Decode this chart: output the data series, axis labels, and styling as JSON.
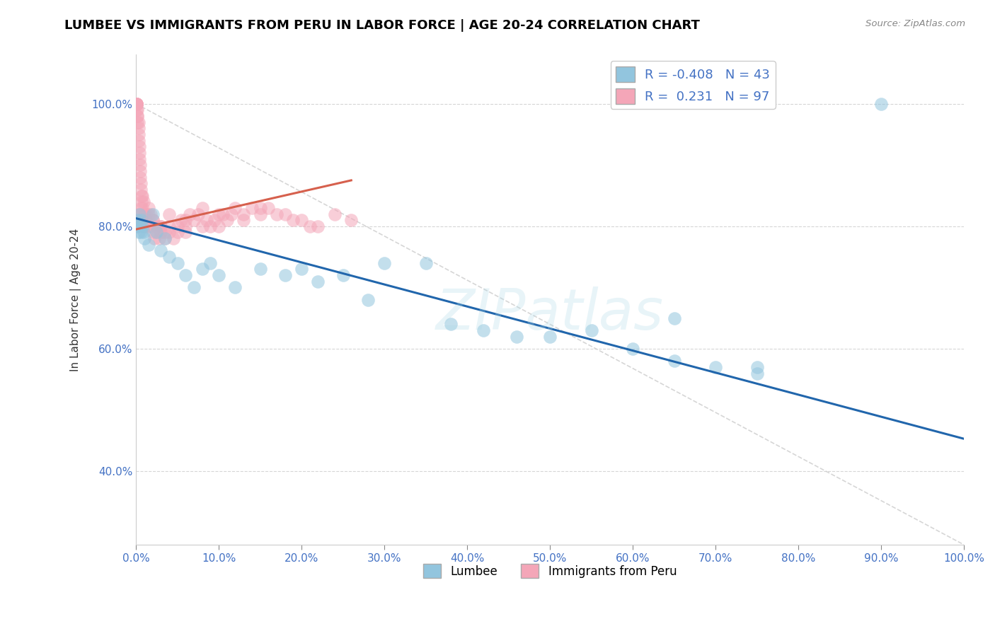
{
  "title": "LUMBEE VS IMMIGRANTS FROM PERU IN LABOR FORCE | AGE 20-24 CORRELATION CHART",
  "source_text": "Source: ZipAtlas.com",
  "ylabel": "In Labor Force | Age 20-24",
  "watermark": "ZIPatlas",
  "legend_lumbee": "Lumbee",
  "legend_peru": "Immigrants from Peru",
  "R_lumbee": -0.408,
  "N_lumbee": 43,
  "R_peru": 0.231,
  "N_peru": 97,
  "color_lumbee": "#92c5de",
  "color_peru": "#f4a6b8",
  "line_color_lumbee": "#2166ac",
  "line_color_peru": "#d6604d",
  "xmin": 0.0,
  "xmax": 1.0,
  "ymin": 0.28,
  "ymax": 1.08,
  "lumbee_x": [
    0.001,
    0.002,
    0.003,
    0.004,
    0.005,
    0.006,
    0.007,
    0.008,
    0.009,
    0.01,
    0.015,
    0.02,
    0.025,
    0.03,
    0.035,
    0.04,
    0.05,
    0.06,
    0.07,
    0.08,
    0.09,
    0.1,
    0.12,
    0.15,
    0.18,
    0.2,
    0.22,
    0.25,
    0.28,
    0.3,
    0.35,
    0.38,
    0.42,
    0.46,
    0.5,
    0.55,
    0.6,
    0.65,
    0.7,
    0.75,
    0.65,
    0.75,
    0.9
  ],
  "lumbee_y": [
    0.8,
    0.81,
    0.79,
    0.82,
    0.8,
    0.79,
    0.81,
    0.8,
    0.79,
    0.78,
    0.77,
    0.82,
    0.79,
    0.76,
    0.78,
    0.75,
    0.74,
    0.72,
    0.7,
    0.73,
    0.74,
    0.72,
    0.7,
    0.73,
    0.72,
    0.73,
    0.71,
    0.72,
    0.68,
    0.74,
    0.74,
    0.64,
    0.63,
    0.62,
    0.62,
    0.63,
    0.6,
    0.65,
    0.57,
    0.56,
    0.58,
    0.57,
    1.0
  ],
  "peru_x": [
    0.001,
    0.001,
    0.001,
    0.001,
    0.001,
    0.001,
    0.001,
    0.002,
    0.002,
    0.002,
    0.002,
    0.003,
    0.003,
    0.003,
    0.003,
    0.004,
    0.004,
    0.004,
    0.005,
    0.005,
    0.005,
    0.006,
    0.006,
    0.007,
    0.007,
    0.008,
    0.008,
    0.009,
    0.009,
    0.01,
    0.01,
    0.012,
    0.012,
    0.015,
    0.015,
    0.018,
    0.018,
    0.02,
    0.02,
    0.022,
    0.025,
    0.025,
    0.028,
    0.03,
    0.03,
    0.035,
    0.035,
    0.04,
    0.04,
    0.045,
    0.05,
    0.05,
    0.055,
    0.06,
    0.06,
    0.065,
    0.07,
    0.075,
    0.08,
    0.085,
    0.09,
    0.095,
    0.1,
    0.105,
    0.11,
    0.115,
    0.12,
    0.13,
    0.14,
    0.15,
    0.001,
    0.001,
    0.002,
    0.003,
    0.004,
    0.005,
    0.006,
    0.008,
    0.01,
    0.015,
    0.02,
    0.03,
    0.04,
    0.06,
    0.08,
    0.1,
    0.13,
    0.16,
    0.18,
    0.2,
    0.22,
    0.24,
    0.26,
    0.15,
    0.17,
    0.19,
    0.21
  ],
  "peru_y": [
    1.0,
    1.0,
    1.0,
    1.0,
    1.0,
    1.0,
    0.99,
    0.99,
    0.98,
    0.98,
    0.97,
    0.97,
    0.96,
    0.95,
    0.94,
    0.93,
    0.92,
    0.91,
    0.9,
    0.89,
    0.88,
    0.87,
    0.86,
    0.85,
    0.84,
    0.85,
    0.83,
    0.82,
    0.84,
    0.81,
    0.8,
    0.82,
    0.81,
    0.83,
    0.8,
    0.82,
    0.8,
    0.81,
    0.79,
    0.78,
    0.8,
    0.79,
    0.78,
    0.79,
    0.8,
    0.79,
    0.78,
    0.8,
    0.79,
    0.78,
    0.79,
    0.8,
    0.81,
    0.79,
    0.8,
    0.82,
    0.81,
    0.82,
    0.8,
    0.81,
    0.8,
    0.81,
    0.8,
    0.82,
    0.81,
    0.82,
    0.83,
    0.82,
    0.83,
    0.82,
    0.81,
    0.8,
    0.82,
    0.81,
    0.8,
    0.82,
    0.83,
    0.81,
    0.8,
    0.82,
    0.81,
    0.8,
    0.82,
    0.81,
    0.83,
    0.82,
    0.81,
    0.83,
    0.82,
    0.81,
    0.8,
    0.82,
    0.81,
    0.83,
    0.82,
    0.81,
    0.8
  ],
  "ref_line_x": [
    0.0,
    1.0
  ],
  "ref_line_y": [
    1.0,
    0.28
  ],
  "lumbee_line_x": [
    0.0,
    1.0
  ],
  "lumbee_line_y": [
    0.813,
    0.453
  ],
  "peru_line_x": [
    0.0,
    0.26
  ],
  "peru_line_y": [
    0.795,
    0.875
  ]
}
